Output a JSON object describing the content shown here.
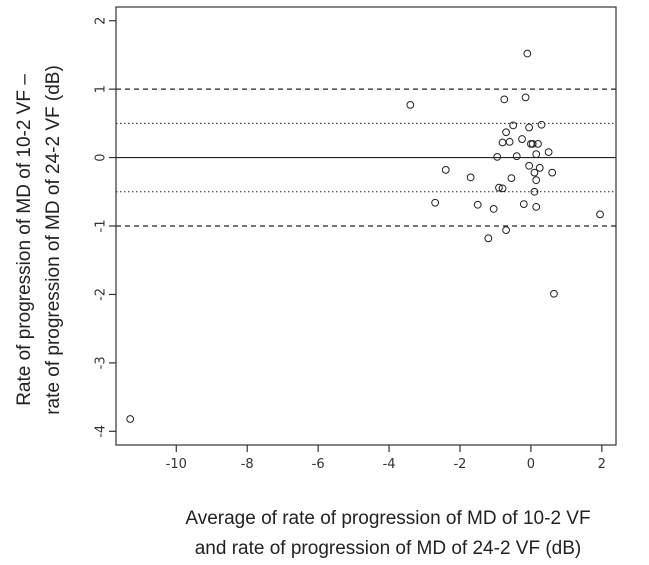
{
  "chart_data": {
    "type": "scatter",
    "xlabel_lines": [
      "Average of rate of progression of MD of 10-2 VF",
      "and  rate of progression of MD of 24-2 VF (dB)"
    ],
    "ylabel_lines": [
      "Rate of progression of MD of 10-2 VF –",
      "rate of progression of MD of 24-2 VF (dB)"
    ],
    "xlim": [
      -11.7,
      2.4
    ],
    "ylim": [
      -4.2,
      2.2
    ],
    "x_ticks": [
      -10,
      -8,
      -6,
      -4,
      -2,
      0,
      2
    ],
    "y_ticks": [
      -4,
      -3,
      -2,
      -1,
      0,
      1,
      2
    ],
    "x_tick_labels": [
      "-10",
      "-8",
      "-6",
      "-4",
      "-2",
      "0",
      "2"
    ],
    "y_tick_labels": [
      "-4",
      "-3",
      "-2",
      "-1",
      "0",
      "1",
      "2"
    ],
    "grid": false,
    "reference_lines": [
      {
        "y": 0,
        "style": "solid"
      },
      {
        "y": 1,
        "style": "dashed"
      },
      {
        "y": -1,
        "style": "dashed"
      },
      {
        "y": 0.5,
        "style": "dotted"
      },
      {
        "y": -0.5,
        "style": "dotted"
      }
    ],
    "points": [
      {
        "x": -11.3,
        "y": -3.82
      },
      {
        "x": -3.4,
        "y": 0.77
      },
      {
        "x": -2.7,
        "y": -0.66
      },
      {
        "x": -2.4,
        "y": -0.18
      },
      {
        "x": -1.7,
        "y": -0.29
      },
      {
        "x": -1.5,
        "y": -0.69
      },
      {
        "x": -1.2,
        "y": -1.18
      },
      {
        "x": -1.05,
        "y": -0.75
      },
      {
        "x": -0.95,
        "y": 0.01
      },
      {
        "x": -0.9,
        "y": -0.44
      },
      {
        "x": -0.8,
        "y": -0.45
      },
      {
        "x": -0.8,
        "y": 0.22
      },
      {
        "x": -0.75,
        "y": 0.85
      },
      {
        "x": -0.7,
        "y": -1.06
      },
      {
        "x": -0.7,
        "y": 0.37
      },
      {
        "x": -0.6,
        "y": 0.23
      },
      {
        "x": -0.55,
        "y": -0.3
      },
      {
        "x": -0.5,
        "y": 0.47
      },
      {
        "x": -0.4,
        "y": 0.02
      },
      {
        "x": -0.25,
        "y": 0.27
      },
      {
        "x": -0.2,
        "y": -0.68
      },
      {
        "x": -0.15,
        "y": 0.88
      },
      {
        "x": -0.1,
        "y": 1.52
      },
      {
        "x": -0.05,
        "y": -0.12
      },
      {
        "x": -0.05,
        "y": 0.44
      },
      {
        "x": 0.0,
        "y": 0.2
      },
      {
        "x": 0.05,
        "y": 0.2
      },
      {
        "x": 0.1,
        "y": -0.5
      },
      {
        "x": 0.1,
        "y": -0.22
      },
      {
        "x": 0.15,
        "y": -0.33
      },
      {
        "x": 0.15,
        "y": -0.72
      },
      {
        "x": 0.15,
        "y": 0.05
      },
      {
        "x": 0.2,
        "y": 0.2
      },
      {
        "x": 0.25,
        "y": -0.15
      },
      {
        "x": 0.3,
        "y": 0.48
      },
      {
        "x": 0.5,
        "y": 0.08
      },
      {
        "x": 0.6,
        "y": -0.22
      },
      {
        "x": 0.65,
        "y": -1.99
      },
      {
        "x": 1.95,
        "y": -0.83
      }
    ]
  }
}
